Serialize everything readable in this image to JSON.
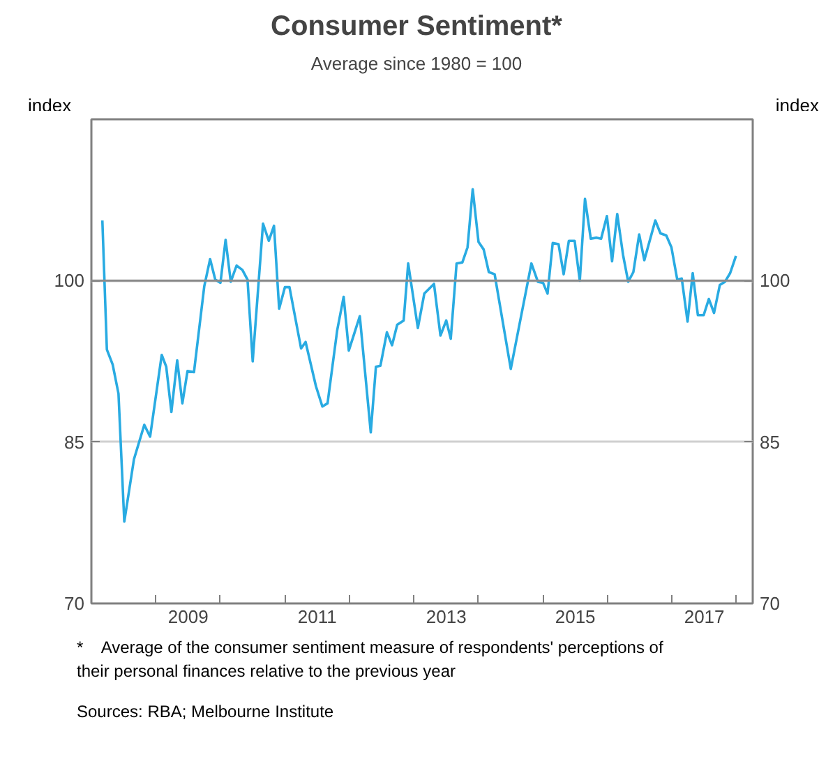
{
  "chart_data": {
    "type": "line",
    "title": "Consumer Sentiment*",
    "subtitle": "Average since 1980 = 100",
    "ylabel": "index",
    "y2label": "index",
    "x": [
      2008.17,
      2008.24,
      2008.33,
      2008.42,
      2008.51,
      2008.66,
      2008.82,
      2008.91,
      2009.09,
      2009.16,
      2009.24,
      2009.33,
      2009.41,
      2009.49,
      2009.59,
      2009.75,
      2009.84,
      2009.92,
      2010.0,
      2010.08,
      2010.16,
      2010.25,
      2010.34,
      2010.42,
      2010.5,
      2010.66,
      2010.75,
      2010.83,
      2010.91,
      2011.0,
      2011.07,
      2011.25,
      2011.32,
      2011.48,
      2011.58,
      2011.66,
      2011.81,
      2011.91,
      2011.99,
      2012.16,
      2012.33,
      2012.41,
      2012.48,
      2012.58,
      2012.66,
      2012.74,
      2012.84,
      2012.91,
      2013.06,
      2013.16,
      2013.31,
      2013.41,
      2013.5,
      2013.57,
      2013.66,
      2013.75,
      2013.83,
      2013.91,
      2014.0,
      2014.08,
      2014.16,
      2014.25,
      2014.5,
      2014.82,
      2014.92,
      2015.0,
      2015.07,
      2015.15,
      2015.24,
      2015.32,
      2015.4,
      2015.49,
      2015.57,
      2015.65,
      2015.74,
      2015.83,
      2015.9,
      2015.99,
      2016.07,
      2016.15,
      2016.24,
      2016.32,
      2016.4,
      2016.49,
      2016.57,
      2016.74,
      2016.82,
      2016.91,
      2016.99,
      2017.08,
      2017.15,
      2017.24,
      2017.32,
      2017.4,
      2017.49,
      2017.57,
      2017.65,
      2017.74,
      2017.82,
      2017.9,
      2017.99
    ],
    "series": [
      {
        "color": "#29abe2",
        "values": [
          105.6,
          93.6,
          92.2,
          89.5,
          77.6,
          83.4,
          86.6,
          85.5,
          93.1,
          92.0,
          87.8,
          92.6,
          88.6,
          91.6,
          91.5,
          99.5,
          102.0,
          100.1,
          99.8,
          103.8,
          99.9,
          101.4,
          101.0,
          100.1,
          92.5,
          105.3,
          103.7,
          105.1,
          97.4,
          99.4,
          99.4,
          93.7,
          94.3,
          90.2,
          88.3,
          88.6,
          95.4,
          98.5,
          93.5,
          96.7,
          85.9,
          92.0,
          92.1,
          95.2,
          94.0,
          95.9,
          96.3,
          101.6,
          95.6,
          98.8,
          99.7,
          94.9,
          96.3,
          94.6,
          101.6,
          101.7,
          103.1,
          108.5,
          103.6,
          102.9,
          100.8,
          100.6,
          91.8,
          101.6,
          99.9,
          99.8,
          98.8,
          103.5,
          103.4,
          100.6,
          103.7,
          103.7,
          100.0,
          107.6,
          103.9,
          104.0,
          103.9,
          106.0,
          101.8,
          106.2,
          102.4,
          99.9,
          100.8,
          104.3,
          101.9,
          105.6,
          104.4,
          104.2,
          103.1,
          100.1,
          100.2,
          96.2,
          100.7,
          96.8,
          96.8,
          98.3,
          97.0,
          99.6,
          99.9,
          100.7,
          102.3
        ]
      }
    ],
    "xlim": [
      2008.0,
      2018.25
    ],
    "xticks": [
      {
        "value": 2009,
        "label": null
      },
      {
        "value": 2010,
        "label": null
      },
      {
        "value": 2011,
        "label": null
      },
      {
        "value": 2012,
        "label": null
      },
      {
        "value": 2013,
        "label": null
      },
      {
        "value": 2014,
        "label": null
      },
      {
        "value": 2015,
        "label": null
      },
      {
        "value": 2016,
        "label": null
      },
      {
        "value": 2017,
        "label": null
      },
      {
        "value": 2018,
        "label": null
      },
      {
        "value": 2009.5,
        "label": "2009"
      },
      {
        "value": 2011.5,
        "label": "2011"
      },
      {
        "value": 2013.5,
        "label": "2013"
      },
      {
        "value": 2015.5,
        "label": "2015"
      },
      {
        "value": 2017.5,
        "label": "2017"
      }
    ],
    "ylim": [
      70,
      115
    ],
    "yticks": [
      70,
      85,
      100
    ],
    "y2lim": [
      70,
      115
    ],
    "y2ticks": [
      70,
      85,
      100
    ],
    "grid": "y",
    "ref_lines": [
      {
        "axis": "y",
        "value": 100,
        "color": "#8c8c8c"
      }
    ],
    "annotations": [
      "*    Average of the consumer sentiment measure of respondents' perceptions of their personal finances relative to the previous year",
      "Sources: RBA; Melbourne Institute"
    ]
  }
}
